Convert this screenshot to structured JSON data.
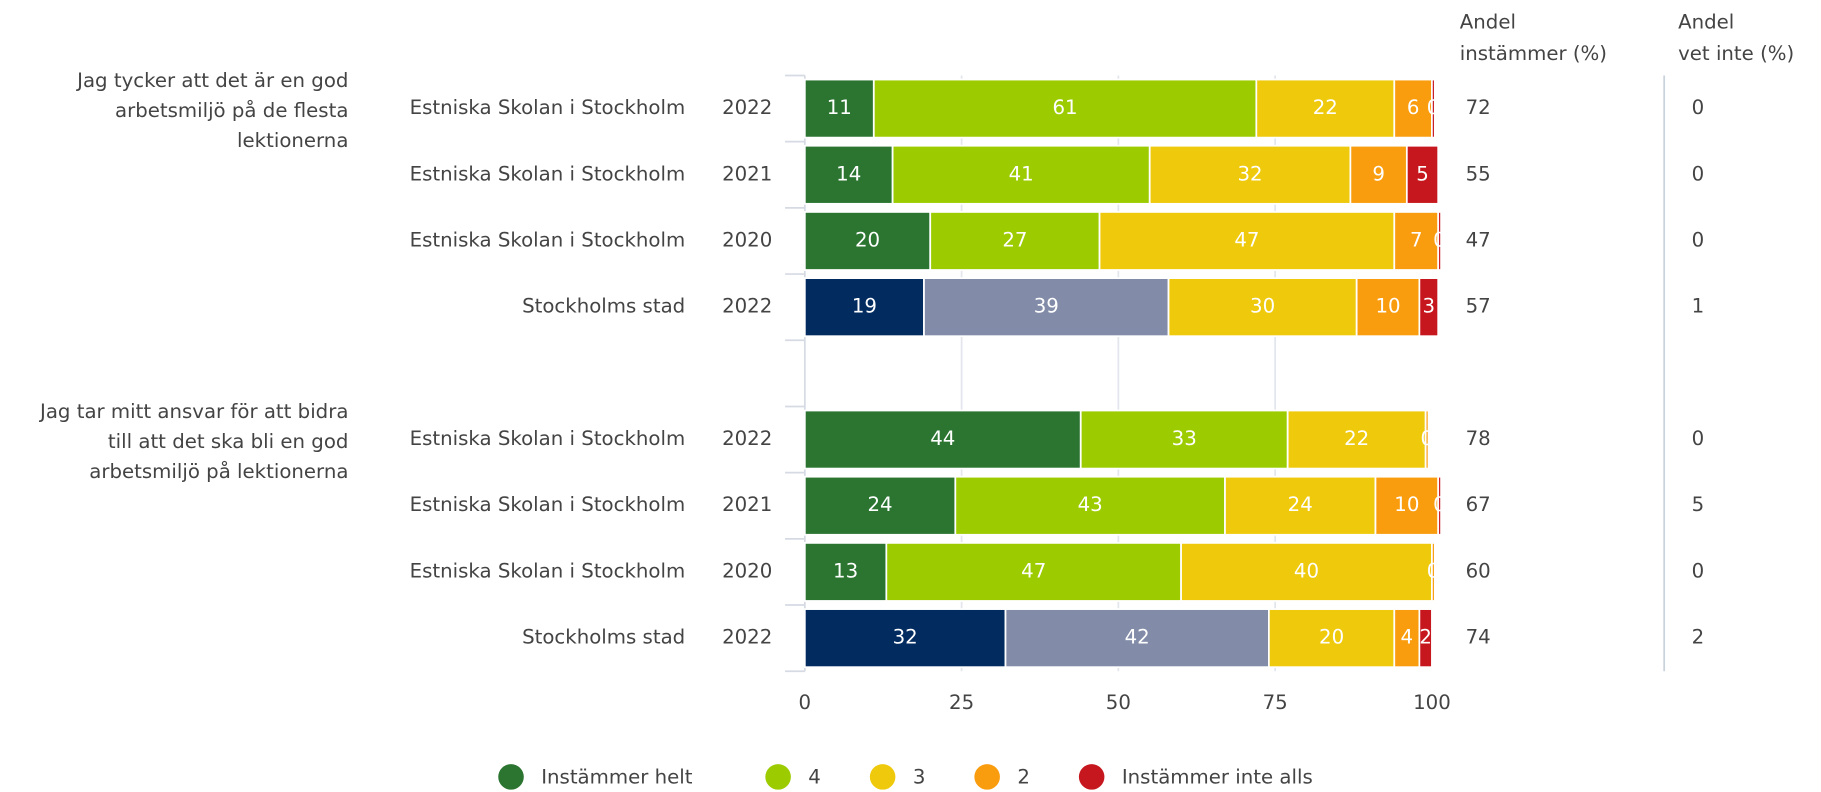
{
  "chart_data": {
    "type": "bar",
    "orientation": "horizontal",
    "stacked": true,
    "xlim": [
      0,
      100
    ],
    "xticks": [
      0,
      25,
      50,
      75,
      100
    ],
    "grid": true,
    "legend": [
      {
        "name": "Instämmer helt",
        "color": "#2b7531"
      },
      {
        "name": "4",
        "color": "#9ccc00"
      },
      {
        "name": "3",
        "color": "#efc90b"
      },
      {
        "name": "2",
        "color": "#f99c0e"
      },
      {
        "name": "Instämmer inte alls",
        "color": "#c6171e"
      }
    ],
    "column_titles": [
      [
        "Andel",
        "instämmer (%)"
      ],
      [
        "Andel",
        "vet inte (%)"
      ]
    ],
    "groups": [
      {
        "question_lines": [
          "Jag tycker att det är en god",
          "arbetsmiljö på de flesta",
          "lektionerna"
        ],
        "categories": [
          "Estniska Skolan i Stockholm",
          "Estniska Skolan i Stockholm",
          "Estniska Skolan i Stockholm",
          "Stockholms stad"
        ],
        "years": [
          "2022",
          "2021",
          "2020",
          "2022"
        ],
        "series": [
          {
            "values": [
              11,
              14,
              20,
              19
            ],
            "colors": [
              "#2b7531",
              "#2b7531",
              "#2b7531",
              "#022b60"
            ]
          },
          {
            "values": [
              61,
              41,
              27,
              39
            ],
            "colors": [
              "#9ccc00",
              "#9ccc00",
              "#9ccc00",
              "#828ca8"
            ]
          },
          {
            "values": [
              22,
              32,
              47,
              30
            ],
            "colors": [
              "#efc90b",
              "#efc90b",
              "#efc90b",
              "#efc90b"
            ]
          },
          {
            "values": [
              6,
              9,
              7,
              10
            ],
            "colors": [
              "#f99c0e",
              "#f99c0e",
              "#f99c0e",
              "#f99c0e"
            ]
          },
          {
            "values": [
              0,
              5,
              0,
              3
            ],
            "colors": [
              "#c6171e",
              "#c6171e",
              "#c6171e",
              "#c6171e"
            ]
          }
        ],
        "columns": [
          [
            72,
            55,
            47,
            57
          ],
          [
            0,
            0,
            0,
            1
          ]
        ]
      },
      {
        "question_lines": [
          "Jag tar mitt ansvar för att bidra",
          "till att det ska bli en god",
          "arbetsmiljö på lektionerna"
        ],
        "categories": [
          "Estniska Skolan i Stockholm",
          "Estniska Skolan i Stockholm",
          "Estniska Skolan i Stockholm",
          "Stockholms stad"
        ],
        "years": [
          "2022",
          "2021",
          "2020",
          "2022"
        ],
        "series": [
          {
            "values": [
              44,
              24,
              13,
              32
            ],
            "colors": [
              "#2b7531",
              "#2b7531",
              "#2b7531",
              "#022b60"
            ]
          },
          {
            "values": [
              33,
              43,
              47,
              42
            ],
            "colors": [
              "#9ccc00",
              "#9ccc00",
              "#9ccc00",
              "#828ca8"
            ]
          },
          {
            "values": [
              22,
              24,
              40,
              20
            ],
            "colors": [
              "#efc90b",
              "#efc90b",
              "#efc90b",
              "#efc90b"
            ]
          },
          {
            "values": [
              0,
              10,
              0,
              4
            ],
            "colors": [
              "#f99c0e",
              "#f99c0e",
              "#f99c0e",
              "#f99c0e"
            ]
          },
          {
            "values": [
              null,
              0,
              null,
              2
            ],
            "colors": [
              "#c6171e",
              "#c6171e",
              "#c6171e",
              "#c6171e"
            ]
          }
        ],
        "columns": [
          [
            78,
            67,
            60,
            74
          ],
          [
            0,
            5,
            0,
            2
          ]
        ]
      }
    ]
  }
}
